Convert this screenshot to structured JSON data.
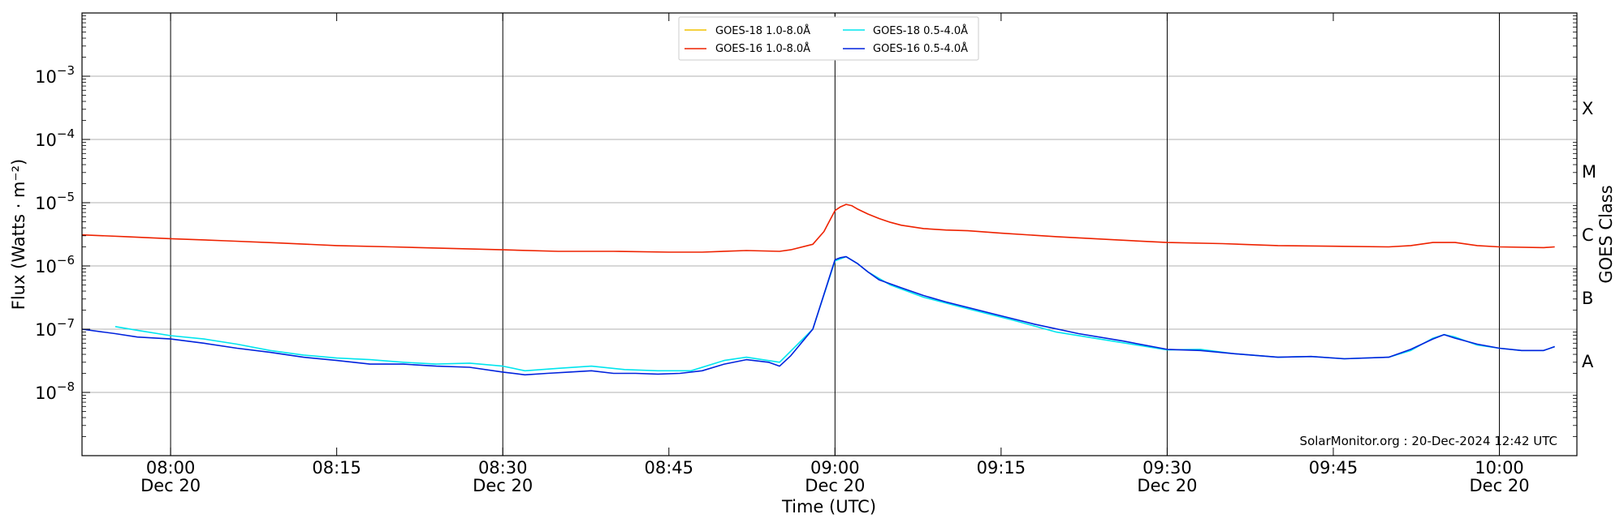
{
  "chart_data": {
    "type": "line",
    "xlabel": "Time (UTC)",
    "ylabel": "Flux (Watts · m⁻²)",
    "y2label": "GOES Class",
    "yscale": "log",
    "ylim": [
      1e-09,
      0.01
    ],
    "x_range": [
      "07:52",
      "10:07"
    ],
    "x_ticks": [
      {
        "time": "08:00",
        "label": "08:00",
        "date": "Dec 20"
      },
      {
        "time": "08:15",
        "label": "08:15",
        "date": ""
      },
      {
        "time": "08:30",
        "label": "08:30",
        "date": "Dec 20"
      },
      {
        "time": "08:45",
        "label": "08:45",
        "date": ""
      },
      {
        "time": "09:00",
        "label": "09:00",
        "date": "Dec 20"
      },
      {
        "time": "09:15",
        "label": "09:15",
        "date": ""
      },
      {
        "time": "09:30",
        "label": "09:30",
        "date": "Dec 20"
      },
      {
        "time": "09:45",
        "label": "09:45",
        "date": ""
      },
      {
        "time": "10:00",
        "label": "10:00",
        "date": "Dec 20"
      }
    ],
    "y_ticks": [
      {
        "exp": "-8",
        "value": 1e-08
      },
      {
        "exp": "-7",
        "value": 1e-07
      },
      {
        "exp": "-6",
        "value": 1e-06
      },
      {
        "exp": "-5",
        "value": 1e-05
      },
      {
        "exp": "-4",
        "value": 0.0001
      },
      {
        "exp": "-3",
        "value": 0.001
      }
    ],
    "vertical_lines": [
      "08:00",
      "08:30",
      "09:00",
      "09:30",
      "10:00"
    ],
    "classes": [
      {
        "label": "A",
        "value": 3.16e-08
      },
      {
        "label": "B",
        "value": 3.16e-07
      },
      {
        "label": "C",
        "value": 3.16e-06
      },
      {
        "label": "M",
        "value": 3.16e-05
      },
      {
        "label": "X",
        "value": 0.000316
      }
    ],
    "legend_position": "top-center",
    "series": [
      {
        "name": "GOES-18 1.0-8.0Å",
        "color": "#f2c200",
        "points": []
      },
      {
        "name": "GOES-18 0.5-4.0Å",
        "color": "#00e5ee",
        "points": [
          [
            "07:55",
            1.1e-07
          ],
          [
            "07:57",
            9.6e-08
          ],
          [
            "08:00",
            7.9e-08
          ],
          [
            "08:03",
            7e-08
          ],
          [
            "08:06",
            5.8e-08
          ],
          [
            "08:09",
            4.6e-08
          ],
          [
            "08:12",
            3.9e-08
          ],
          [
            "08:15",
            3.5e-08
          ],
          [
            "08:18",
            3.3e-08
          ],
          [
            "08:21",
            3e-08
          ],
          [
            "08:24",
            2.8e-08
          ],
          [
            "08:27",
            2.9e-08
          ],
          [
            "08:30",
            2.6e-08
          ],
          [
            "08:32",
            2.2e-08
          ],
          [
            "08:35",
            2.4e-08
          ],
          [
            "08:38",
            2.6e-08
          ],
          [
            "08:41",
            2.3e-08
          ],
          [
            "08:44",
            2.2e-08
          ],
          [
            "08:47",
            2.2e-08
          ],
          [
            "08:50",
            3.2e-08
          ],
          [
            "08:52",
            3.6e-08
          ],
          [
            "08:55",
            3e-08
          ],
          [
            "08:58",
            1e-07
          ],
          [
            "09:00",
            1.2e-06
          ],
          [
            "09:01",
            1.4e-06
          ],
          [
            "09:02",
            1.1e-06
          ],
          [
            "09:03",
            8e-07
          ],
          [
            "09:05",
            5e-07
          ],
          [
            "09:08",
            3.2e-07
          ],
          [
            "09:12",
            2.1e-07
          ],
          [
            "09:16",
            1.4e-07
          ],
          [
            "09:20",
            9e-08
          ],
          [
            "09:25",
            6.5e-08
          ],
          [
            "09:30",
            4.7e-08
          ],
          [
            "09:33",
            4.8e-08
          ],
          [
            "09:36",
            4.1e-08
          ],
          [
            "09:40",
            3.6e-08
          ],
          [
            "09:43",
            3.7e-08
          ],
          [
            "09:46",
            3.4e-08
          ],
          [
            "09:50",
            3.6e-08
          ],
          [
            "09:52",
            4.6e-08
          ],
          [
            "09:54",
            7.2e-08
          ],
          [
            "09:55",
            8.2e-08
          ],
          [
            "09:56",
            7.5e-08
          ],
          [
            "09:58",
            5.6e-08
          ],
          [
            "10:00",
            5e-08
          ],
          [
            "10:02",
            4.6e-08
          ],
          [
            "10:04",
            4.6e-08
          ],
          [
            "10:05",
            5.3e-08
          ]
        ]
      },
      {
        "name": "GOES-16 1.0-8.0Å",
        "color": "#ee2200",
        "points": [
          [
            "07:52",
            3.1e-06
          ],
          [
            "07:56",
            2.9e-06
          ],
          [
            "08:00",
            2.7e-06
          ],
          [
            "08:05",
            2.5e-06
          ],
          [
            "08:10",
            2.3e-06
          ],
          [
            "08:15",
            2.1e-06
          ],
          [
            "08:20",
            2e-06
          ],
          [
            "08:25",
            1.9e-06
          ],
          [
            "08:30",
            1.8e-06
          ],
          [
            "08:35",
            1.7e-06
          ],
          [
            "08:40",
            1.7e-06
          ],
          [
            "08:45",
            1.65e-06
          ],
          [
            "08:48",
            1.65e-06
          ],
          [
            "08:52",
            1.75e-06
          ],
          [
            "08:55",
            1.7e-06
          ],
          [
            "08:56",
            1.8e-06
          ],
          [
            "08:58",
            2.2e-06
          ],
          [
            "08:59",
            3.5e-06
          ],
          [
            "09:00",
            7.5e-06
          ],
          [
            "09:00:30",
            8.6e-06
          ],
          [
            "09:01",
            9.4e-06
          ],
          [
            "09:01:30",
            9e-06
          ],
          [
            "09:02",
            8e-06
          ],
          [
            "09:03",
            6.6e-06
          ],
          [
            "09:04",
            5.6e-06
          ],
          [
            "09:05",
            4.9e-06
          ],
          [
            "09:06",
            4.4e-06
          ],
          [
            "09:08",
            3.9e-06
          ],
          [
            "09:10",
            3.7e-06
          ],
          [
            "09:12",
            3.6e-06
          ],
          [
            "09:15",
            3.3e-06
          ],
          [
            "09:20",
            2.9e-06
          ],
          [
            "09:25",
            2.6e-06
          ],
          [
            "09:30",
            2.35e-06
          ],
          [
            "09:35",
            2.25e-06
          ],
          [
            "09:40",
            2.1e-06
          ],
          [
            "09:45",
            2.05e-06
          ],
          [
            "09:50",
            2e-06
          ],
          [
            "09:52",
            2.1e-06
          ],
          [
            "09:54",
            2.35e-06
          ],
          [
            "09:56",
            2.35e-06
          ],
          [
            "09:58",
            2.1e-06
          ],
          [
            "10:00",
            2e-06
          ],
          [
            "10:04",
            1.95e-06
          ],
          [
            "10:05",
            2e-06
          ]
        ]
      },
      {
        "name": "GOES-16 0.5-4.0Å",
        "color": "#0022dd",
        "points": [
          [
            "07:52",
            1e-07
          ],
          [
            "07:55",
            8.5e-08
          ],
          [
            "07:57",
            7.5e-08
          ],
          [
            "08:00",
            7e-08
          ],
          [
            "08:03",
            6e-08
          ],
          [
            "08:06",
            5e-08
          ],
          [
            "08:09",
            4.3e-08
          ],
          [
            "08:12",
            3.6e-08
          ],
          [
            "08:15",
            3.2e-08
          ],
          [
            "08:18",
            2.8e-08
          ],
          [
            "08:21",
            2.8e-08
          ],
          [
            "08:24",
            2.6e-08
          ],
          [
            "08:27",
            2.5e-08
          ],
          [
            "08:30",
            2.1e-08
          ],
          [
            "08:32",
            1.9e-08
          ],
          [
            "08:34",
            2e-08
          ],
          [
            "08:36",
            2.1e-08
          ],
          [
            "08:38",
            2.2e-08
          ],
          [
            "08:40",
            2e-08
          ],
          [
            "08:42",
            2e-08
          ],
          [
            "08:44",
            1.95e-08
          ],
          [
            "08:46",
            2e-08
          ],
          [
            "08:48",
            2.2e-08
          ],
          [
            "08:50",
            2.8e-08
          ],
          [
            "08:52",
            3.3e-08
          ],
          [
            "08:54",
            3e-08
          ],
          [
            "08:55",
            2.6e-08
          ],
          [
            "08:56",
            3.8e-08
          ],
          [
            "08:58",
            1e-07
          ],
          [
            "09:00",
            1.25e-06
          ],
          [
            "09:00:30",
            1.35e-06
          ],
          [
            "09:01",
            1.4e-06
          ],
          [
            "09:02",
            1.1e-06
          ],
          [
            "09:03",
            8e-07
          ],
          [
            "09:04",
            6e-07
          ],
          [
            "09:06",
            4.5e-07
          ],
          [
            "09:08",
            3.4e-07
          ],
          [
            "09:10",
            2.7e-07
          ],
          [
            "09:14",
            1.8e-07
          ],
          [
            "09:18",
            1.2e-07
          ],
          [
            "09:22",
            8.5e-08
          ],
          [
            "09:26",
            6.5e-08
          ],
          [
            "09:30",
            4.8e-08
          ],
          [
            "09:33",
            4.6e-08
          ],
          [
            "09:36",
            4.1e-08
          ],
          [
            "09:40",
            3.6e-08
          ],
          [
            "09:43",
            3.7e-08
          ],
          [
            "09:46",
            3.4e-08
          ],
          [
            "09:50",
            3.6e-08
          ],
          [
            "09:52",
            4.8e-08
          ],
          [
            "09:54",
            7e-08
          ],
          [
            "09:55",
            8.2e-08
          ],
          [
            "09:56",
            7.2e-08
          ],
          [
            "09:58",
            5.8e-08
          ],
          [
            "10:00",
            5e-08
          ],
          [
            "10:02",
            4.6e-08
          ],
          [
            "10:04",
            4.6e-08
          ],
          [
            "10:05",
            5.3e-08
          ]
        ]
      }
    ],
    "credit": "SolarMonitor.org : 20-Dec-2024 12:42 UTC"
  }
}
